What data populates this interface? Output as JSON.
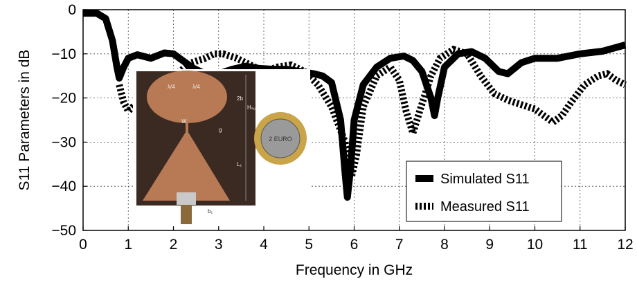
{
  "chart_data": {
    "type": "line",
    "title": "",
    "xlabel": "Frequency in GHz",
    "ylabel": "S11 Parameters in dB",
    "xlim": [
      0,
      12
    ],
    "ylim": [
      -50,
      0
    ],
    "xticks": [
      "0",
      "1",
      "2",
      "3",
      "4",
      "5",
      "6",
      "7",
      "8",
      "9",
      "10",
      "11",
      "12"
    ],
    "yticks": [
      "0",
      "−10",
      "−20",
      "−30",
      "−40",
      "−50"
    ],
    "grid": true,
    "legend": {
      "position": "bottom-right"
    },
    "series": [
      {
        "name": "Simulated S11",
        "style": "solid",
        "color": "#000000",
        "points": [
          [
            0,
            -0.8
          ],
          [
            0.3,
            -0.8
          ],
          [
            0.5,
            -2
          ],
          [
            0.65,
            -7
          ],
          [
            0.75,
            -13
          ],
          [
            0.8,
            -15.5
          ],
          [
            0.9,
            -13
          ],
          [
            1.0,
            -11
          ],
          [
            1.2,
            -10.2
          ],
          [
            1.5,
            -11
          ],
          [
            1.8,
            -9.8
          ],
          [
            2.0,
            -10
          ],
          [
            2.2,
            -11.5
          ],
          [
            2.45,
            -13.3
          ],
          [
            2.7,
            -14.5
          ],
          [
            3.0,
            -14.5
          ],
          [
            3.3,
            -13.5
          ],
          [
            3.6,
            -12.8
          ],
          [
            3.9,
            -13.3
          ],
          [
            4.2,
            -13.5
          ],
          [
            4.5,
            -13.5
          ],
          [
            4.8,
            -14
          ],
          [
            5.1,
            -14.5
          ],
          [
            5.3,
            -15
          ],
          [
            5.5,
            -16.5
          ],
          [
            5.7,
            -25
          ],
          [
            5.8,
            -37
          ],
          [
            5.85,
            -42.5
          ],
          [
            5.92,
            -36
          ],
          [
            6.0,
            -25
          ],
          [
            6.2,
            -17
          ],
          [
            6.5,
            -13
          ],
          [
            6.8,
            -11
          ],
          [
            7.1,
            -10.5
          ],
          [
            7.3,
            -11.5
          ],
          [
            7.5,
            -14
          ],
          [
            7.7,
            -20
          ],
          [
            7.78,
            -24
          ],
          [
            7.85,
            -20
          ],
          [
            8.0,
            -13
          ],
          [
            8.3,
            -10
          ],
          [
            8.6,
            -9.5
          ],
          [
            8.9,
            -11
          ],
          [
            9.2,
            -14
          ],
          [
            9.4,
            -14.5
          ],
          [
            9.7,
            -12
          ],
          [
            10.0,
            -11
          ],
          [
            10.5,
            -11
          ],
          [
            11.0,
            -10
          ],
          [
            11.5,
            -9.4
          ],
          [
            12.0,
            -8
          ]
        ]
      },
      {
        "name": "Measured S11",
        "style": "dashed",
        "color": "#000000",
        "points": [
          [
            0.8,
            -17
          ],
          [
            0.9,
            -21
          ],
          [
            1.0,
            -23
          ],
          [
            1.1,
            -22
          ],
          [
            2.4,
            -12
          ],
          [
            2.7,
            -11
          ],
          [
            2.9,
            -10
          ],
          [
            3.1,
            -10
          ],
          [
            3.4,
            -11
          ],
          [
            3.7,
            -12.5
          ],
          [
            4.0,
            -14
          ],
          [
            4.3,
            -13
          ],
          [
            4.6,
            -12.5
          ],
          [
            4.9,
            -14
          ],
          [
            5.2,
            -17
          ],
          [
            5.5,
            -22
          ],
          [
            5.8,
            -30
          ],
          [
            5.95,
            -37.5
          ],
          [
            6.05,
            -33
          ],
          [
            6.2,
            -22
          ],
          [
            6.5,
            -15
          ],
          [
            6.8,
            -13
          ],
          [
            7.0,
            -16
          ],
          [
            7.15,
            -23
          ],
          [
            7.3,
            -28
          ],
          [
            7.45,
            -23
          ],
          [
            7.7,
            -15
          ],
          [
            7.9,
            -11
          ],
          [
            8.2,
            -9
          ],
          [
            8.5,
            -10
          ],
          [
            8.8,
            -15
          ],
          [
            9.1,
            -19
          ],
          [
            9.4,
            -20.5
          ],
          [
            9.7,
            -21.5
          ],
          [
            10.0,
            -22.5
          ],
          [
            10.2,
            -24
          ],
          [
            10.4,
            -25.5
          ],
          [
            10.6,
            -24
          ],
          [
            10.8,
            -21
          ],
          [
            11.1,
            -17
          ],
          [
            11.4,
            -15
          ],
          [
            11.6,
            -14.5
          ],
          [
            11.8,
            -16
          ],
          [
            12.0,
            -17
          ]
        ]
      }
    ]
  },
  "inset": {
    "photo_labels": [
      "λ/4",
      "λ/4",
      "2b",
      "Hₛᵤᵇ",
      "W",
      "g",
      "L₁",
      "b₁"
    ],
    "coin_label": "2 EURO"
  }
}
